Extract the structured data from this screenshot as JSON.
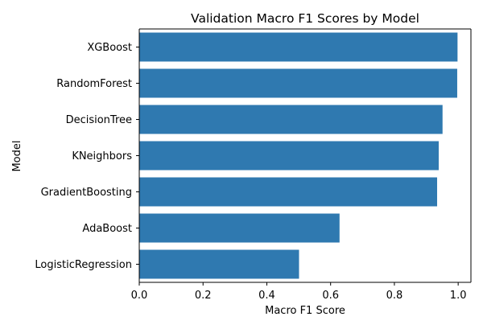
{
  "chart_data": {
    "type": "bar",
    "orientation": "horizontal",
    "title": "Validation Macro F1 Scores by Model",
    "xlabel": "Macro F1 Score",
    "ylabel": "Model",
    "categories": [
      "XGBoost",
      "RandomForest",
      "DecisionTree",
      "KNeighbors",
      "GradientBoosting",
      "AdaBoost",
      "LogisticRegression"
    ],
    "values": [
      0.998,
      0.997,
      0.951,
      0.939,
      0.934,
      0.628,
      0.501
    ],
    "xlim": [
      0.0,
      1.04
    ],
    "xticks": [
      0.0,
      0.2,
      0.4,
      0.6,
      0.8,
      1.0
    ],
    "xtick_labels": [
      "0.0",
      "0.2",
      "0.4",
      "0.6",
      "0.8",
      "1.0"
    ],
    "grid": false,
    "legend": "none",
    "bar_color": "#2f79b0"
  }
}
